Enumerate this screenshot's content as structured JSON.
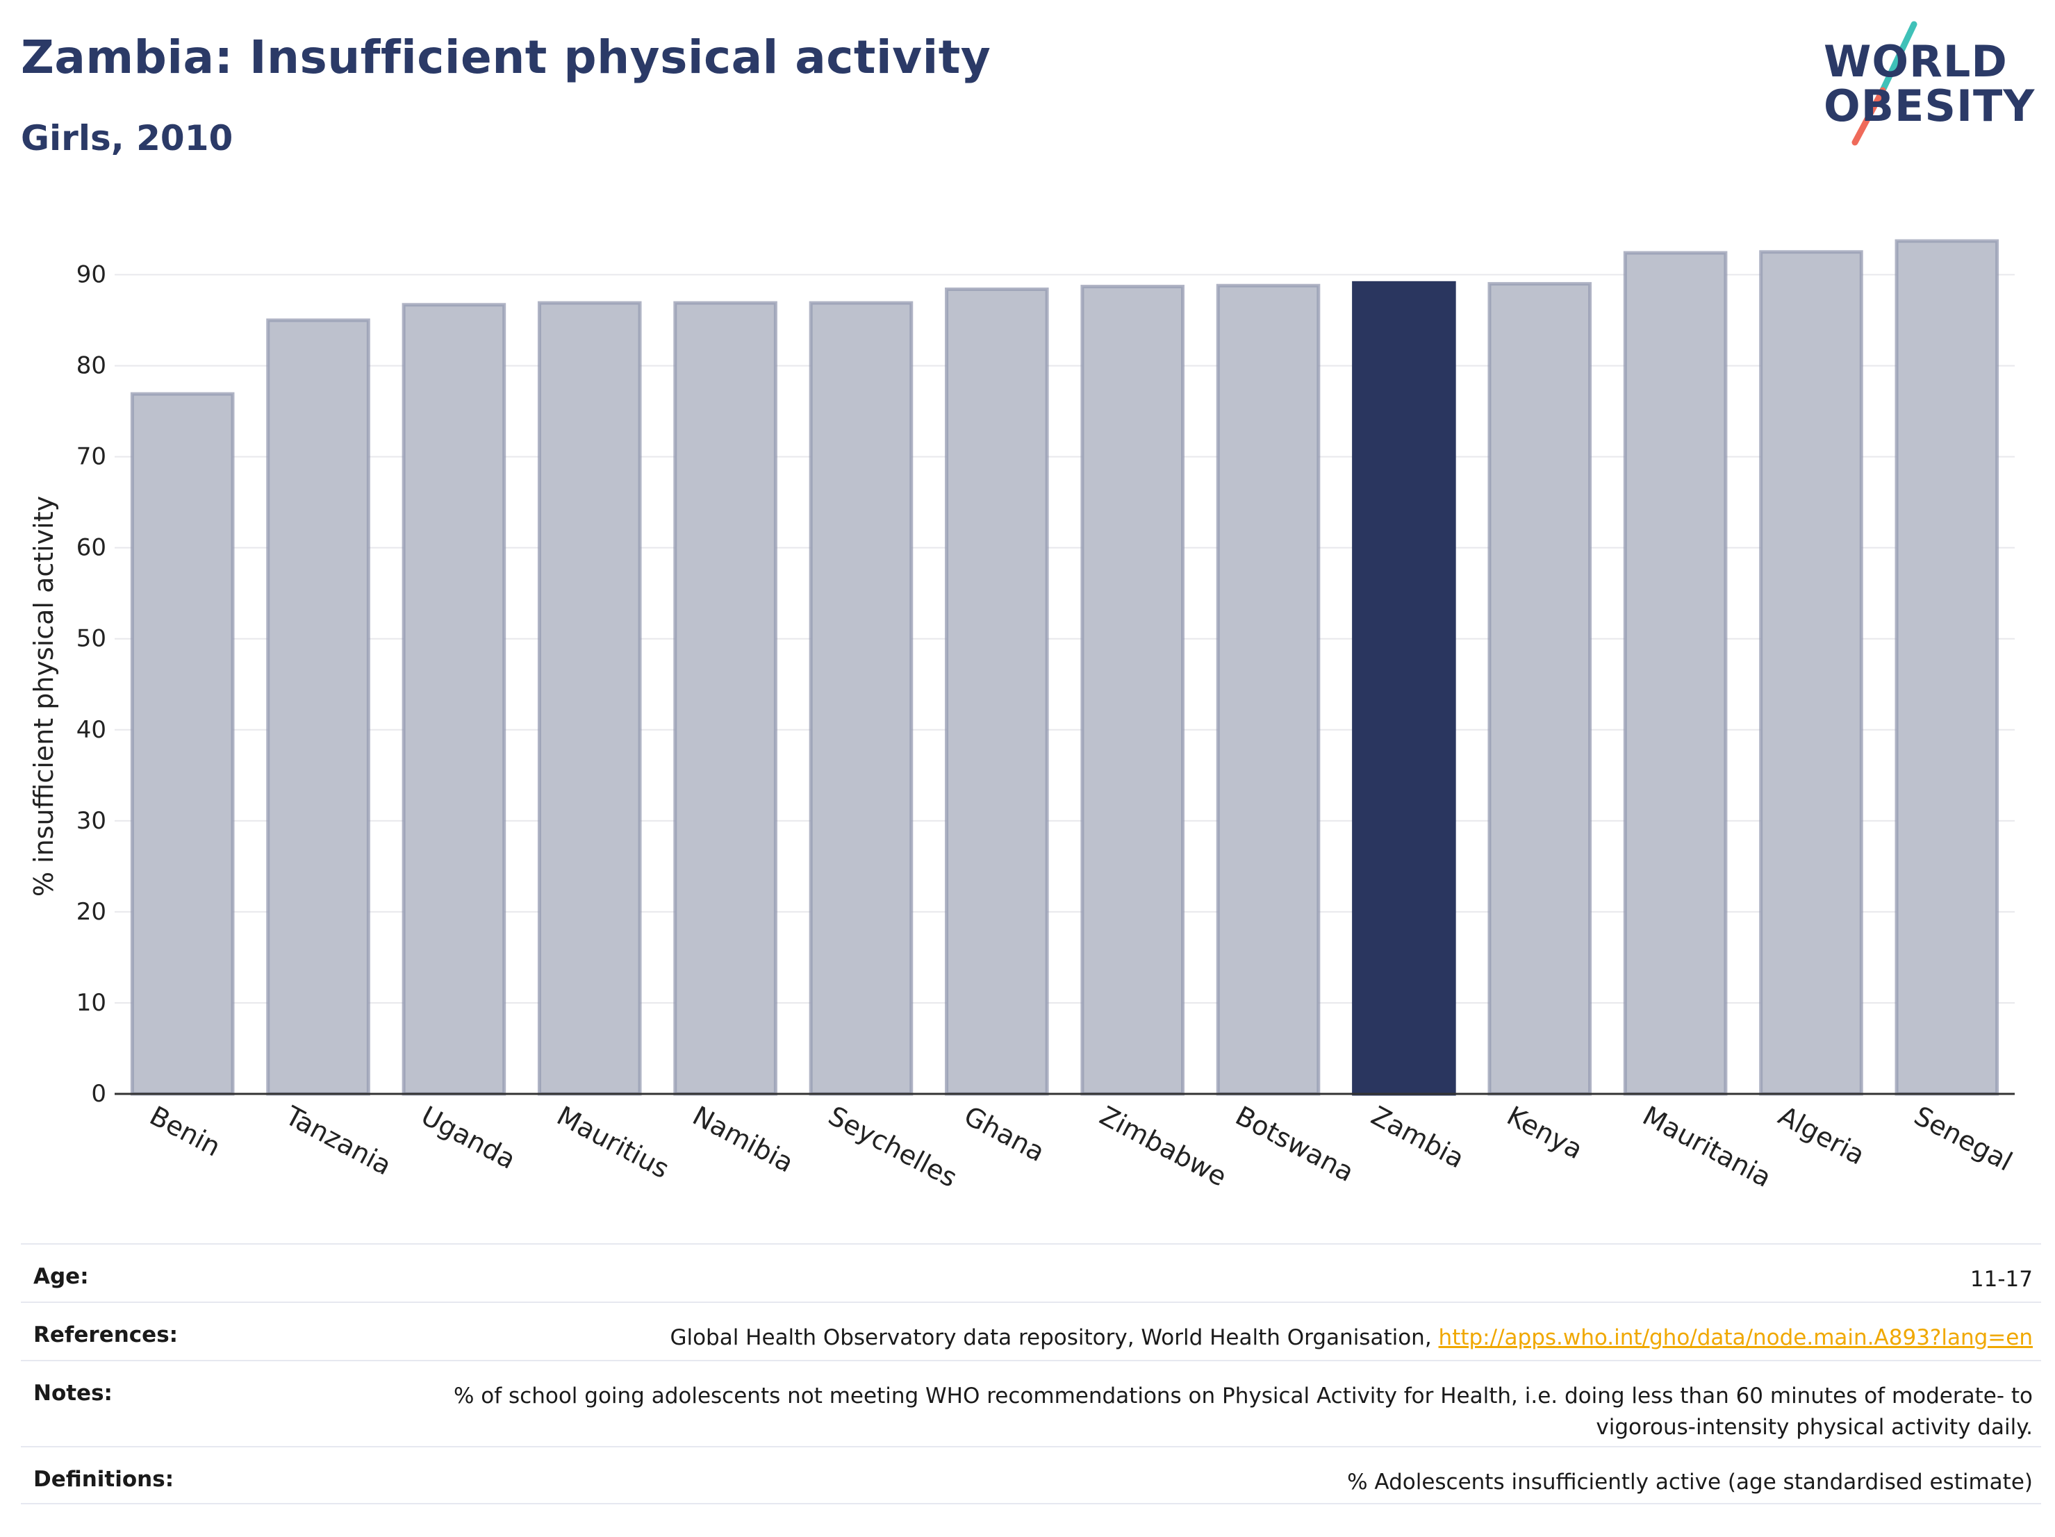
{
  "title": "Zambia: Insufficient physical activity",
  "subtitle": "Girls, 2010",
  "logo": {
    "line1": "WORLD",
    "line2": "OBESITY"
  },
  "chart_data": {
    "type": "bar",
    "categories": [
      "Benin",
      "Tanzania",
      "Uganda",
      "Mauritius",
      "Namibia",
      "Seychelles",
      "Ghana",
      "Zimbabwe",
      "Botswana",
      "Zambia",
      "Kenya",
      "Mauritania",
      "Algeria",
      "Senegal"
    ],
    "values": [
      76.9,
      85.0,
      86.7,
      86.9,
      86.9,
      86.9,
      88.4,
      88.7,
      88.8,
      89.1,
      89.0,
      92.4,
      92.5,
      93.7
    ],
    "highlight": "Zambia",
    "ylabel": "% insufficient physical activity",
    "xlabel": "",
    "ylim": [
      0,
      95
    ],
    "yticks": [
      0,
      10,
      20,
      30,
      40,
      50,
      60,
      70,
      80,
      90
    ],
    "colors": {
      "bar": "#bdc1cd",
      "bar_stroke": "#959bb2",
      "highlight": "#2a365f",
      "grid": "#e8e8ec",
      "axis": "#333333"
    }
  },
  "table": {
    "age_label": "Age:",
    "age_value": "11-17",
    "references_label": "References:",
    "references_value": "Global Health Observatory data repository, World Health Organisation, ",
    "references_link": "http://apps.who.int/gho/data/node.main.A893?lang=en",
    "notes_label": "Notes:",
    "notes_value": "% of school going adolescents not meeting WHO recommendations on Physical Activity for Health, i.e. doing less than 60 minutes of moderate- to vigorous-intensity physical activity daily.",
    "definitions_label": "Definitions:",
    "definitions_value": "% Adolescents insufficiently active (age standardised estimate)"
  }
}
